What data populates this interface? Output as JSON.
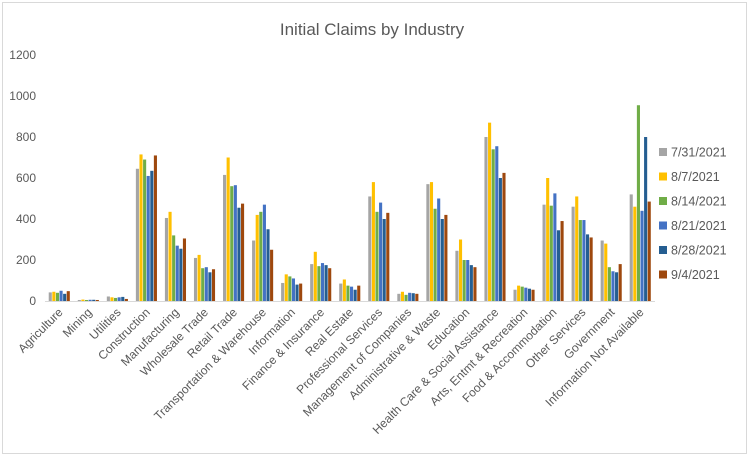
{
  "chart_data": {
    "type": "bar",
    "title": "Initial Claims by Industry",
    "xlabel": "",
    "ylabel": "",
    "ylim": [
      0,
      1200
    ],
    "yticks": [
      0,
      200,
      400,
      600,
      800,
      1000,
      1200
    ],
    "grid": false,
    "legend_position": "right",
    "categories": [
      "Agriculture",
      "Mining",
      "Utilities",
      "Construction",
      "Manufacturing",
      "Wholesale Trade",
      "Retail Trade",
      "Transportation & Warehouse",
      "Information",
      "Finance & Insurance",
      "Real Estate",
      "Professional Services",
      "Management of Companies",
      "Administrative & Waste",
      "Education",
      "Health Care & Social Assistance",
      "Arts, Entmt & Recreation",
      "Food & Accommodation",
      "Other Services",
      "Government",
      "Information Not Available"
    ],
    "series": [
      {
        "name": "7/31/2021",
        "color": "#a5a5a5",
        "values": [
          42,
          5,
          22,
          645,
          405,
          210,
          615,
          295,
          88,
          180,
          85,
          510,
          35,
          570,
          245,
          800,
          55,
          470,
          460,
          295,
          520
        ]
      },
      {
        "name": "8/7/2021",
        "color": "#ffc000",
        "values": [
          45,
          7,
          18,
          715,
          435,
          225,
          700,
          420,
          130,
          240,
          105,
          580,
          45,
          580,
          300,
          870,
          75,
          600,
          510,
          280,
          460
        ]
      },
      {
        "name": "8/14/2021",
        "color": "#70ad47",
        "values": [
          40,
          5,
          15,
          690,
          320,
          160,
          560,
          435,
          120,
          170,
          75,
          435,
          30,
          450,
          200,
          740,
          70,
          465,
          395,
          165,
          955
        ]
      },
      {
        "name": "8/21/2021",
        "color": "#4472c4",
        "values": [
          50,
          6,
          18,
          610,
          270,
          165,
          565,
          470,
          110,
          185,
          70,
          480,
          40,
          500,
          200,
          755,
          65,
          525,
          395,
          145,
          440
        ]
      },
      {
        "name": "8/28/2021",
        "color": "#255e91",
        "values": [
          35,
          6,
          20,
          635,
          255,
          140,
          455,
          350,
          80,
          175,
          55,
          400,
          38,
          400,
          175,
          600,
          60,
          345,
          325,
          140,
          800
        ]
      },
      {
        "name": "9/4/2021",
        "color": "#9e480e",
        "values": [
          48,
          5,
          10,
          710,
          305,
          155,
          475,
          250,
          85,
          160,
          75,
          430,
          35,
          420,
          165,
          625,
          55,
          390,
          310,
          180,
          485
        ]
      }
    ]
  }
}
